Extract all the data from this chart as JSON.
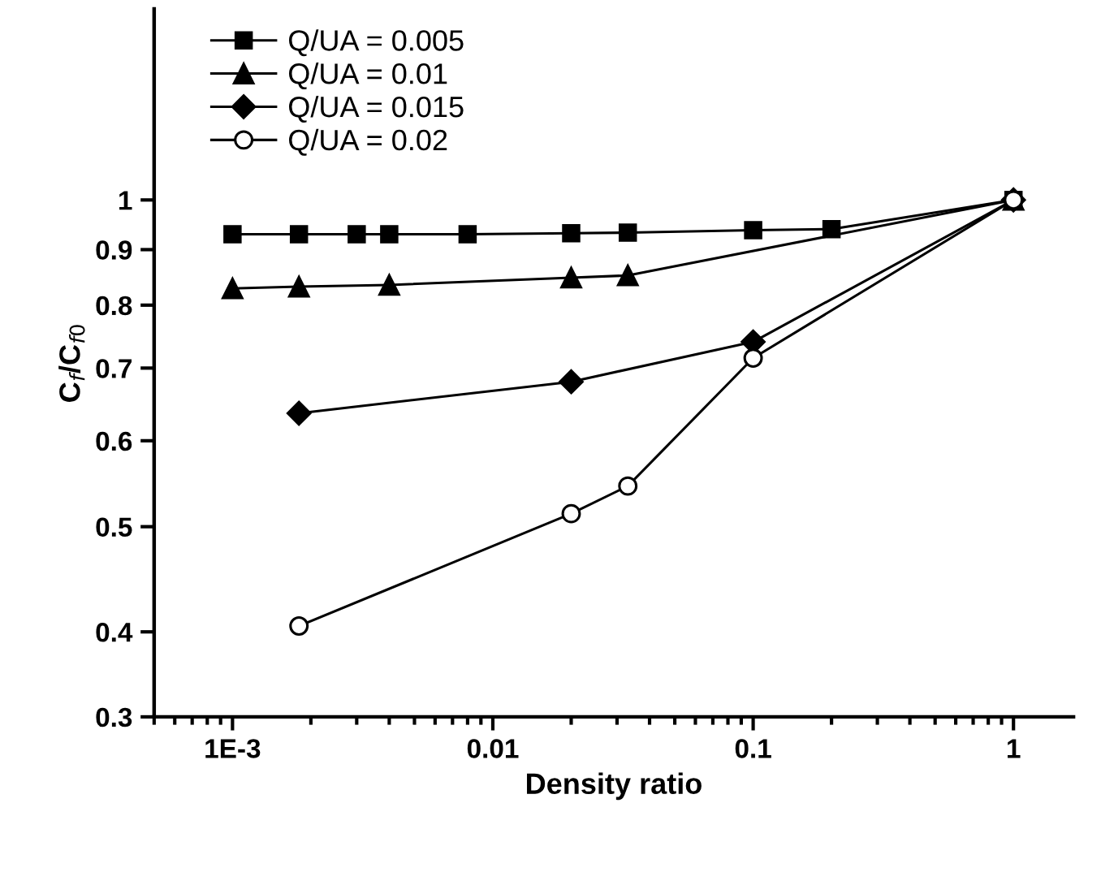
{
  "chart_data": {
    "type": "line",
    "xlabel": "Density ratio",
    "ylabel": "C$_{f}$/C$_{f0}$",
    "log": "xy",
    "grid": false,
    "legend": "top left",
    "xlim": [
      0.0005,
      1.7
    ],
    "ylim": [
      0.334,
      1.5
    ],
    "xticks": [
      {
        "value": 0.001,
        "label": "1E-3"
      },
      0.01,
      0.1,
      1
    ],
    "yticks": [
      {
        "value": 0.334,
        "label": "0.3"
      },
      0.4,
      0.5,
      0.6,
      0.7,
      0.8,
      0.9,
      1
    ],
    "series": [
      {
        "name": "Q/UA = 0.005",
        "color": "#000000",
        "marker": "square",
        "x": [
          0.001,
          0.0018,
          0.003,
          0.004,
          0.008,
          0.02,
          0.033,
          0.1,
          0.2,
          1
        ],
        "values": [
          0.93,
          0.93,
          0.93,
          0.93,
          0.93,
          0.932,
          0.933,
          0.938,
          0.94,
          1.0
        ]
      },
      {
        "name": "Q/UA = 0.01",
        "color": "#000000",
        "marker": "triangle",
        "x": [
          0.001,
          0.0018,
          0.004,
          0.02,
          0.033,
          1
        ],
        "values": [
          0.829,
          0.832,
          0.835,
          0.848,
          0.852,
          1.0
        ]
      },
      {
        "name": "Q/UA = 0.015",
        "color": "#000000",
        "marker": "diamond",
        "x": [
          0.0018,
          0.02,
          0.1,
          1
        ],
        "values": [
          0.636,
          0.68,
          0.74,
          1.0
        ]
      },
      {
        "name": "Q/UA = 0.02",
        "color": "#000000",
        "marker": "circle",
        "x": [
          0.0018,
          0.02,
          0.033,
          0.1,
          1
        ],
        "values": [
          0.405,
          0.514,
          0.545,
          0.715,
          1.0
        ]
      }
    ]
  }
}
